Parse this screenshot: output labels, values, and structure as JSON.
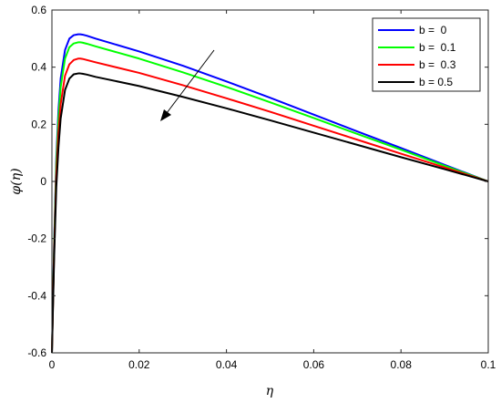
{
  "chart_data": {
    "type": "line",
    "title": "",
    "xlabel": "η",
    "ylabel": "φ(η)",
    "xlim": [
      0,
      0.1
    ],
    "ylim": [
      -0.6,
      0.6
    ],
    "xticks": [
      "0",
      "0.02",
      "0.04",
      "0.06",
      "0.08",
      "0.1"
    ],
    "yticks": [
      "-0.6",
      "-0.4",
      "-0.2",
      "0",
      "0.2",
      "0.4",
      "0.6"
    ],
    "grid": false,
    "legend_position": "top-right",
    "annotation": "arrow showing decreasing trend with increasing b",
    "series": [
      {
        "name": "b =  0",
        "color": "#0000ff",
        "x": [
          0,
          0.0005,
          0.001,
          0.0015,
          0.002,
          0.003,
          0.004,
          0.005,
          0.006,
          0.0065,
          0.007,
          0.008,
          0.01,
          0.02,
          0.03,
          0.04,
          0.05,
          0.06,
          0.07,
          0.08,
          0.09,
          0.1
        ],
        "y": [
          -0.6,
          -0.22,
          0.08,
          0.25,
          0.36,
          0.46,
          0.5,
          0.512,
          0.515,
          0.515,
          0.514,
          0.51,
          0.5,
          0.455,
          0.405,
          0.35,
          0.293,
          0.234,
          0.175,
          0.117,
          0.058,
          0
        ]
      },
      {
        "name": "b =  0.1",
        "color": "#00ff00",
        "x": [
          0,
          0.0005,
          0.001,
          0.0015,
          0.002,
          0.003,
          0.004,
          0.005,
          0.006,
          0.0065,
          0.007,
          0.008,
          0.01,
          0.02,
          0.03,
          0.04,
          0.05,
          0.06,
          0.07,
          0.08,
          0.09,
          0.1
        ],
        "y": [
          -0.6,
          -0.23,
          0.06,
          0.22,
          0.33,
          0.43,
          0.47,
          0.483,
          0.487,
          0.487,
          0.486,
          0.482,
          0.473,
          0.43,
          0.382,
          0.331,
          0.277,
          0.222,
          0.166,
          0.111,
          0.055,
          0
        ]
      },
      {
        "name": "b =  0.3",
        "color": "#ff0000",
        "x": [
          0,
          0.0005,
          0.001,
          0.0015,
          0.002,
          0.003,
          0.004,
          0.005,
          0.006,
          0.0065,
          0.007,
          0.008,
          0.01,
          0.02,
          0.03,
          0.04,
          0.05,
          0.06,
          0.07,
          0.08,
          0.09,
          0.1
        ],
        "y": [
          -0.6,
          -0.25,
          0.02,
          0.17,
          0.27,
          0.37,
          0.41,
          0.425,
          0.43,
          0.43,
          0.429,
          0.425,
          0.417,
          0.38,
          0.337,
          0.291,
          0.244,
          0.195,
          0.146,
          0.097,
          0.049,
          0
        ]
      },
      {
        "name": "b = 0.5",
        "color": "#000000",
        "x": [
          0,
          0.0005,
          0.001,
          0.0015,
          0.002,
          0.003,
          0.004,
          0.005,
          0.006,
          0.0065,
          0.007,
          0.008,
          0.01,
          0.02,
          0.03,
          0.04,
          0.05,
          0.06,
          0.07,
          0.08,
          0.09,
          0.1
        ],
        "y": [
          -0.6,
          -0.27,
          -0.02,
          0.12,
          0.22,
          0.32,
          0.36,
          0.375,
          0.378,
          0.378,
          0.377,
          0.374,
          0.366,
          0.334,
          0.296,
          0.256,
          0.214,
          0.171,
          0.128,
          0.085,
          0.043,
          0
        ]
      }
    ]
  }
}
